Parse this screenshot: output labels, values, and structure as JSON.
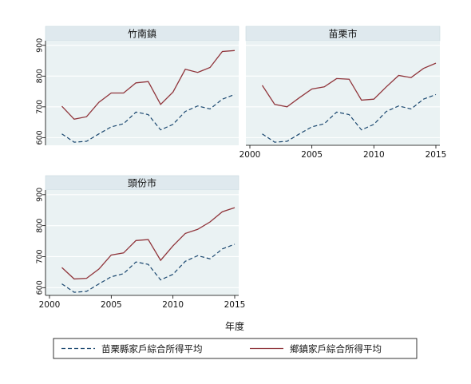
{
  "chart_data": {
    "type": "line",
    "xlabel": "年度",
    "ylim": [
      575,
      915
    ],
    "xlim": [
      2000,
      2015
    ],
    "x_ticks": [
      2000,
      2005,
      2010,
      2015
    ],
    "y_ticks": [
      600,
      700,
      800,
      900
    ],
    "grid": true,
    "legend_position": "bottom",
    "colors": {
      "plot_bg": "#eaf2f3",
      "outer_bg": "#ffffff",
      "figure_bg": "#ffffff",
      "strip_bg": "#dfe9ee",
      "grid": "#ffffff",
      "county_line": "#1a476f",
      "township_line": "#90353b"
    },
    "x": [
      2001,
      2002,
      2003,
      2004,
      2005,
      2006,
      2007,
      2008,
      2009,
      2010,
      2011,
      2012,
      2013,
      2014,
      2015
    ],
    "county_series": {
      "name": "苗栗縣家戶綜合所得平均",
      "style": "dashed",
      "values": [
        612,
        585,
        588,
        612,
        635,
        645,
        683,
        675,
        625,
        643,
        685,
        703,
        693,
        725,
        740
      ]
    },
    "panels": [
      {
        "title": "竹南鎮",
        "show_x_ticks": false,
        "show_y_ticks": true,
        "series": {
          "name": "鄉鎮家戶綜合所得平均",
          "values": [
            702,
            660,
            668,
            715,
            745,
            745,
            778,
            782,
            708,
            748,
            822,
            812,
            828,
            880,
            883
          ]
        }
      },
      {
        "title": "苗栗市",
        "show_x_ticks": true,
        "show_y_ticks": false,
        "series": {
          "name": "鄉鎮家戶綜合所得平均",
          "values": [
            770,
            708,
            700,
            730,
            758,
            765,
            792,
            790,
            722,
            725,
            765,
            802,
            795,
            825,
            842
          ]
        }
      },
      {
        "title": "頭份市",
        "show_x_ticks": true,
        "show_y_ticks": true,
        "series": {
          "name": "鄉鎮家戶綜合所得平均",
          "values": [
            665,
            628,
            630,
            660,
            705,
            712,
            752,
            755,
            688,
            735,
            775,
            788,
            812,
            845,
            858
          ]
        }
      }
    ],
    "legend": [
      {
        "label": "苗栗縣家戶綜合所得平均",
        "style": "dashed",
        "color": "#1a476f"
      },
      {
        "label": "鄉鎮家戶綜合所得平均",
        "style": "solid",
        "color": "#90353b"
      }
    ]
  }
}
